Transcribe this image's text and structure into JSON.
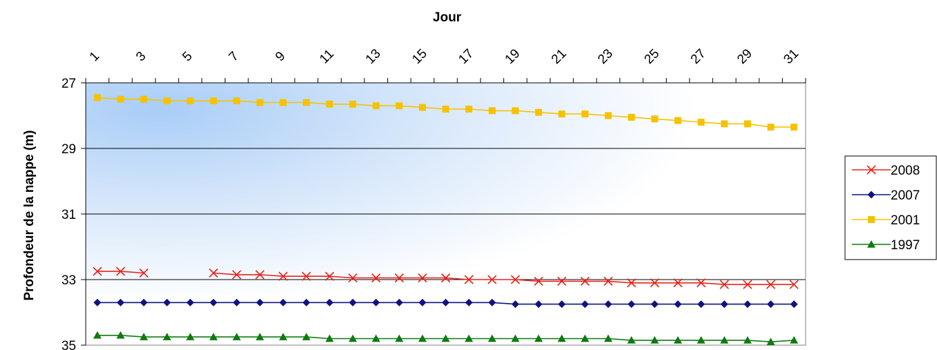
{
  "chart_data": {
    "type": "line",
    "title": "",
    "xlabel": "Jour",
    "ylabel": "Profondeur de la nappe (m)",
    "x_axis_position": "top",
    "y_reversed": true,
    "ylim": [
      27,
      35
    ],
    "yticks": [
      27,
      29,
      31,
      33,
      35
    ],
    "xlim": [
      0.5,
      31.5
    ],
    "xticks": [
      1,
      3,
      5,
      7,
      9,
      11,
      13,
      15,
      17,
      19,
      21,
      23,
      25,
      27,
      29,
      31
    ],
    "grid": "horizontal",
    "legend_position": "right",
    "background": "blue-to-white gradient",
    "x": [
      1,
      2,
      3,
      4,
      5,
      6,
      7,
      8,
      9,
      10,
      11,
      12,
      13,
      14,
      15,
      16,
      17,
      18,
      19,
      20,
      21,
      22,
      23,
      24,
      25,
      26,
      27,
      28,
      29,
      30,
      31
    ],
    "series": [
      {
        "name": "2008",
        "color": "#e8241b",
        "marker": "x",
        "values": [
          32.75,
          32.75,
          32.8,
          null,
          null,
          32.8,
          32.85,
          32.85,
          32.9,
          32.9,
          32.9,
          32.95,
          32.95,
          32.95,
          32.95,
          32.95,
          33.0,
          33.0,
          33.0,
          33.05,
          33.05,
          33.05,
          33.05,
          33.1,
          33.1,
          33.1,
          33.1,
          33.15,
          33.15,
          33.15,
          33.15
        ]
      },
      {
        "name": "2007",
        "color": "#10137e",
        "marker": "diamond",
        "values": [
          33.7,
          33.7,
          33.7,
          33.7,
          33.7,
          33.7,
          33.7,
          33.7,
          33.7,
          33.7,
          33.7,
          33.7,
          33.7,
          33.7,
          33.7,
          33.7,
          33.7,
          33.7,
          33.75,
          33.75,
          33.75,
          33.75,
          33.75,
          33.75,
          33.75,
          33.75,
          33.75,
          33.75,
          33.75,
          33.75,
          33.75
        ]
      },
      {
        "name": "2001",
        "color": "#f6c200",
        "marker": "square",
        "values": [
          27.45,
          27.5,
          27.5,
          27.55,
          27.55,
          27.55,
          27.55,
          27.6,
          27.6,
          27.6,
          27.65,
          27.65,
          27.7,
          27.7,
          27.75,
          27.8,
          27.8,
          27.85,
          27.85,
          27.9,
          27.95,
          27.95,
          28.0,
          28.05,
          28.1,
          28.15,
          28.2,
          28.25,
          28.25,
          28.35,
          28.35
        ]
      },
      {
        "name": "1997",
        "color": "#0f7a12",
        "marker": "triangle",
        "values": [
          34.7,
          34.7,
          34.75,
          34.75,
          34.75,
          34.75,
          34.75,
          34.75,
          34.75,
          34.75,
          34.8,
          34.8,
          34.8,
          34.8,
          34.8,
          34.8,
          34.8,
          34.8,
          34.8,
          34.8,
          34.8,
          34.8,
          34.8,
          34.85,
          34.85,
          34.85,
          34.85,
          34.85,
          34.85,
          34.9,
          34.85
        ]
      }
    ]
  }
}
